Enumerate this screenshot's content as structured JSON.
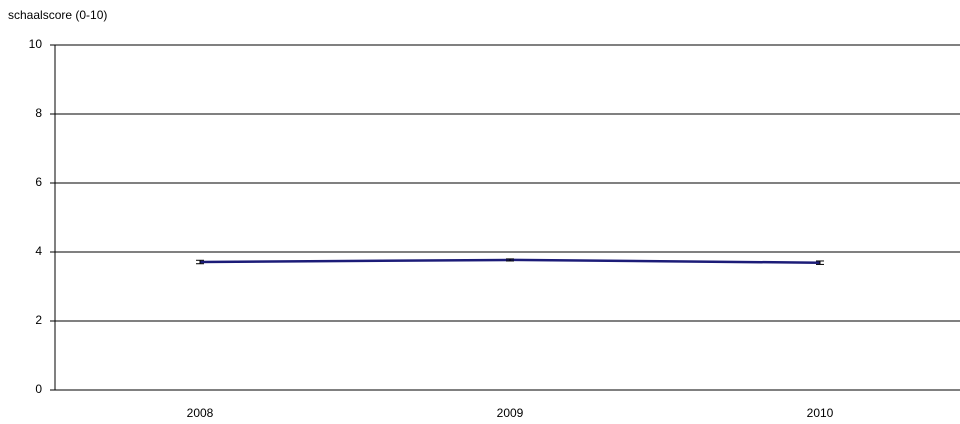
{
  "chart_data": {
    "type": "line",
    "y_label": "schaalscore (0-10)",
    "categories": [
      "2008",
      "2009",
      "2010"
    ],
    "series": [
      {
        "color": "#1c1c78",
        "values": [
          3.71,
          3.77,
          3.69
        ],
        "errors": [
          0.05,
          0.03,
          0.05
        ]
      }
    ],
    "ylim": [
      0,
      10
    ],
    "yticks": [
      0,
      2,
      4,
      6,
      8,
      10
    ],
    "grid": true
  }
}
